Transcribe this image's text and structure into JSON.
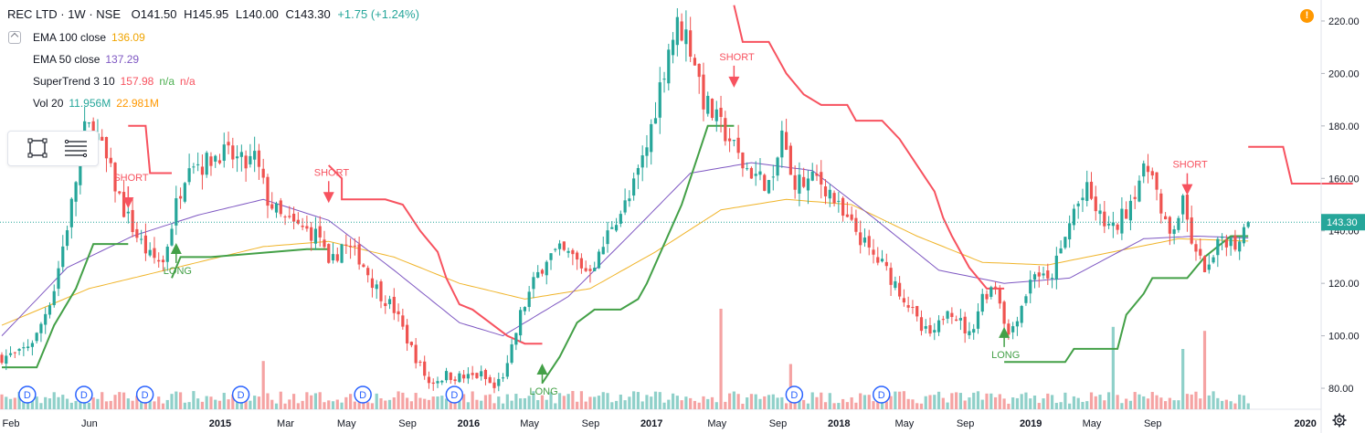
{
  "header": {
    "symbol": "REC LTD · 1W · NSE",
    "open": "O141.50",
    "high": "H145.95",
    "low": "L140.00",
    "close": "C143.30",
    "change": "+1.75 (+1.24%)"
  },
  "indicators": [
    {
      "name": "EMA 100 close",
      "values": [
        {
          "text": "136.09",
          "color": "#f0a400"
        }
      ]
    },
    {
      "name": "EMA 50 close",
      "values": [
        {
          "text": "137.29",
          "color": "#7e57c2"
        }
      ]
    },
    {
      "name": "SuperTrend 3 10",
      "values": [
        {
          "text": "157.98",
          "color": "#f7525f"
        },
        {
          "text": "n/a",
          "color": "#4caf50"
        },
        {
          "text": "n/a",
          "color": "#f7525f"
        }
      ]
    },
    {
      "name": "Vol 20",
      "values": [
        {
          "text": "11.956M",
          "color": "#26a69a"
        },
        {
          "text": "22.981M",
          "color": "#ff9800"
        }
      ]
    }
  ],
  "warning_icon": "exclamation-icon",
  "settings_icon": "gear-icon",
  "chart_data": {
    "type": "candlestick",
    "timeframe": "1W",
    "y_ticks": [
      "80.00",
      "100.00",
      "120.00",
      "140.00",
      "160.00",
      "180.00",
      "200.00",
      "220.00"
    ],
    "ylim": [
      72,
      228
    ],
    "x_ticks": [
      "Feb",
      "Jun",
      "2015",
      "Mar",
      "May",
      "Sep",
      "2016",
      "May",
      "Sep",
      "2017",
      "May",
      "Sep",
      "2018",
      "May",
      "Sep",
      "2019",
      "May",
      "Sep",
      "2020"
    ],
    "last_price": {
      "label": "143.30",
      "value": 143.3,
      "color": "#26a69a"
    },
    "colors": {
      "up": "#26a69a",
      "down": "#ef5350",
      "ema100": "#f0b429",
      "ema50": "#7e57c2",
      "supertrend_up": "#43a047",
      "supertrend_down": "#f7525f",
      "volume_up": "#8fd0c9",
      "volume_down": "#f5a3a3"
    },
    "price_anchors": [
      [
        0,
        92
      ],
      [
        4,
        93
      ],
      [
        8,
        100
      ],
      [
        12,
        118
      ],
      [
        16,
        150
      ],
      [
        19,
        178
      ],
      [
        21,
        180
      ],
      [
        25,
        162
      ],
      [
        28,
        148
      ],
      [
        31,
        138
      ],
      [
        34,
        130
      ],
      [
        37,
        128
      ],
      [
        40,
        150
      ],
      [
        43,
        168
      ],
      [
        46,
        165
      ],
      [
        50,
        170
      ],
      [
        53,
        168
      ],
      [
        56,
        165
      ],
      [
        58,
        168
      ],
      [
        61,
        152
      ],
      [
        64,
        145
      ],
      [
        67,
        142
      ],
      [
        70,
        140
      ],
      [
        73,
        138
      ],
      [
        75,
        125
      ],
      [
        78,
        135
      ],
      [
        82,
        130
      ],
      [
        86,
        118
      ],
      [
        90,
        110
      ],
      [
        94,
        95
      ],
      [
        98,
        82
      ],
      [
        102,
        85
      ],
      [
        106,
        84
      ],
      [
        110,
        85
      ],
      [
        113,
        80
      ],
      [
        116,
        88
      ],
      [
        119,
        108
      ],
      [
        122,
        120
      ],
      [
        125,
        130
      ],
      [
        128,
        132
      ],
      [
        131,
        130
      ],
      [
        134,
        125
      ],
      [
        137,
        130
      ],
      [
        140,
        143
      ],
      [
        144,
        152
      ],
      [
        148,
        172
      ],
      [
        151,
        195
      ],
      [
        153,
        210
      ],
      [
        155,
        218
      ],
      [
        157,
        215
      ],
      [
        159,
        205
      ],
      [
        161,
        190
      ],
      [
        164,
        182
      ],
      [
        167,
        175
      ],
      [
        170,
        165
      ],
      [
        174,
        160
      ],
      [
        177,
        157
      ],
      [
        179,
        178
      ],
      [
        181,
        160
      ],
      [
        184,
        158
      ],
      [
        187,
        160
      ],
      [
        190,
        155
      ],
      [
        193,
        145
      ],
      [
        196,
        140
      ],
      [
        199,
        132
      ],
      [
        202,
        127
      ],
      [
        205,
        120
      ],
      [
        208,
        112
      ],
      [
        211,
        102
      ],
      [
        214,
        100
      ],
      [
        217,
        112
      ],
      [
        220,
        105
      ],
      [
        222,
        100
      ],
      [
        225,
        115
      ],
      [
        228,
        120
      ],
      [
        231,
        100
      ],
      [
        234,
        112
      ],
      [
        237,
        125
      ],
      [
        240,
        120
      ],
      [
        243,
        132
      ],
      [
        246,
        148
      ],
      [
        249,
        155
      ],
      [
        252,
        145
      ],
      [
        255,
        140
      ],
      [
        258,
        148
      ],
      [
        261,
        160
      ],
      [
        264,
        165
      ],
      [
        266,
        145
      ],
      [
        268,
        138
      ],
      [
        271,
        150
      ],
      [
        274,
        130
      ],
      [
        277,
        125
      ],
      [
        280,
        138
      ],
      [
        283,
        135
      ],
      [
        286,
        143.3
      ]
    ],
    "ema100_anchors": [
      [
        0,
        104
      ],
      [
        20,
        118
      ],
      [
        40,
        126
      ],
      [
        60,
        134
      ],
      [
        75,
        136
      ],
      [
        90,
        130
      ],
      [
        105,
        120
      ],
      [
        120,
        114
      ],
      [
        135,
        118
      ],
      [
        150,
        132
      ],
      [
        165,
        148
      ],
      [
        180,
        152
      ],
      [
        195,
        150
      ],
      [
        210,
        138
      ],
      [
        225,
        128
      ],
      [
        240,
        127
      ],
      [
        255,
        132
      ],
      [
        270,
        137
      ],
      [
        286,
        136.09
      ]
    ],
    "ema50_anchors": [
      [
        0,
        100
      ],
      [
        15,
        126
      ],
      [
        30,
        138
      ],
      [
        45,
        146
      ],
      [
        60,
        152
      ],
      [
        75,
        144
      ],
      [
        90,
        125
      ],
      [
        105,
        105
      ],
      [
        115,
        100
      ],
      [
        130,
        115
      ],
      [
        145,
        140
      ],
      [
        158,
        162
      ],
      [
        172,
        166
      ],
      [
        186,
        163
      ],
      [
        200,
        145
      ],
      [
        215,
        125
      ],
      [
        230,
        120
      ],
      [
        245,
        122
      ],
      [
        262,
        137
      ],
      [
        274,
        138
      ],
      [
        286,
        137.29
      ]
    ],
    "supertrend_segments": [
      {
        "dir": "up",
        "points": [
          [
            0,
            88
          ],
          [
            8,
            88
          ],
          [
            12,
            104
          ],
          [
            17,
            118
          ],
          [
            21,
            135
          ],
          [
            29,
            135
          ]
        ]
      },
      {
        "dir": "down",
        "points": [
          [
            29,
            180
          ],
          [
            33,
            180
          ],
          [
            34,
            162
          ],
          [
            39,
            162
          ]
        ]
      },
      {
        "dir": "up",
        "points": [
          [
            39,
            122
          ],
          [
            41,
            130
          ],
          [
            48,
            130
          ],
          [
            70,
            133
          ],
          [
            75,
            133
          ]
        ]
      },
      {
        "dir": "down",
        "points": [
          [
            75,
            165
          ],
          [
            78,
            160
          ],
          [
            78,
            152
          ],
          [
            88,
            152
          ],
          [
            92,
            150
          ],
          [
            96,
            140
          ],
          [
            100,
            132
          ],
          [
            102,
            122
          ],
          [
            105,
            112
          ],
          [
            108,
            110
          ],
          [
            112,
            105
          ],
          [
            116,
            100
          ],
          [
            120,
            97
          ],
          [
            124,
            97
          ]
        ]
      },
      {
        "dir": "up",
        "points": [
          [
            124,
            82
          ],
          [
            128,
            92
          ],
          [
            132,
            105
          ],
          [
            136,
            110
          ],
          [
            142,
            110
          ],
          [
            146,
            114
          ],
          [
            148,
            120
          ],
          [
            152,
            135
          ],
          [
            156,
            150
          ],
          [
            160,
            170
          ],
          [
            162,
            180
          ],
          [
            168,
            180
          ]
        ]
      },
      {
        "dir": "down",
        "points": [
          [
            168,
            226
          ],
          [
            170,
            212
          ],
          [
            176,
            212
          ],
          [
            178,
            206
          ],
          [
            180,
            200
          ],
          [
            184,
            192
          ],
          [
            188,
            188
          ],
          [
            194,
            188
          ],
          [
            196,
            182
          ],
          [
            202,
            182
          ],
          [
            206,
            175
          ],
          [
            210,
            165
          ],
          [
            214,
            155
          ],
          [
            216,
            145
          ],
          [
            218,
            138
          ],
          [
            222,
            126
          ],
          [
            226,
            118
          ],
          [
            230,
            118
          ]
        ]
      },
      {
        "dir": "up",
        "points": [
          [
            230,
            90
          ],
          [
            244,
            90
          ],
          [
            246,
            95
          ],
          [
            256,
            95
          ],
          [
            258,
            108
          ],
          [
            262,
            116
          ],
          [
            264,
            122
          ],
          [
            272,
            122
          ],
          [
            276,
            130
          ],
          [
            282,
            138
          ],
          [
            286,
            138
          ]
        ]
      },
      {
        "dir": "down",
        "points": [
          [
            286,
            172
          ],
          [
            294,
            172
          ],
          [
            296,
            158
          ],
          [
            310,
            158
          ]
        ]
      }
    ],
    "signals": [
      {
        "type": "SHORT",
        "index": 29,
        "price": 150,
        "label": "SHORT"
      },
      {
        "type": "LONG",
        "index": 40,
        "price": 134,
        "label": "LONG"
      },
      {
        "type": "SHORT",
        "index": 75,
        "price": 152,
        "label": "SHORT"
      },
      {
        "type": "LONG",
        "index": 124,
        "price": 88,
        "label": "LONG"
      },
      {
        "type": "SHORT",
        "index": 168,
        "price": 196,
        "label": "SHORT"
      },
      {
        "type": "LONG",
        "index": 230,
        "price": 102,
        "label": "LONG"
      },
      {
        "type": "SHORT",
        "index": 272,
        "price": 155,
        "label": "SHORT"
      }
    ],
    "dividend_markers": {
      "label": "D",
      "indices": [
        5,
        18,
        32,
        54,
        82,
        103,
        181,
        201
      ]
    },
    "volume_spikes": [
      [
        60,
        0.48
      ],
      [
        165,
        1.0
      ],
      [
        181,
        0.45
      ],
      [
        255,
        0.82
      ],
      [
        271,
        0.6
      ],
      [
        276,
        0.78
      ]
    ]
  }
}
